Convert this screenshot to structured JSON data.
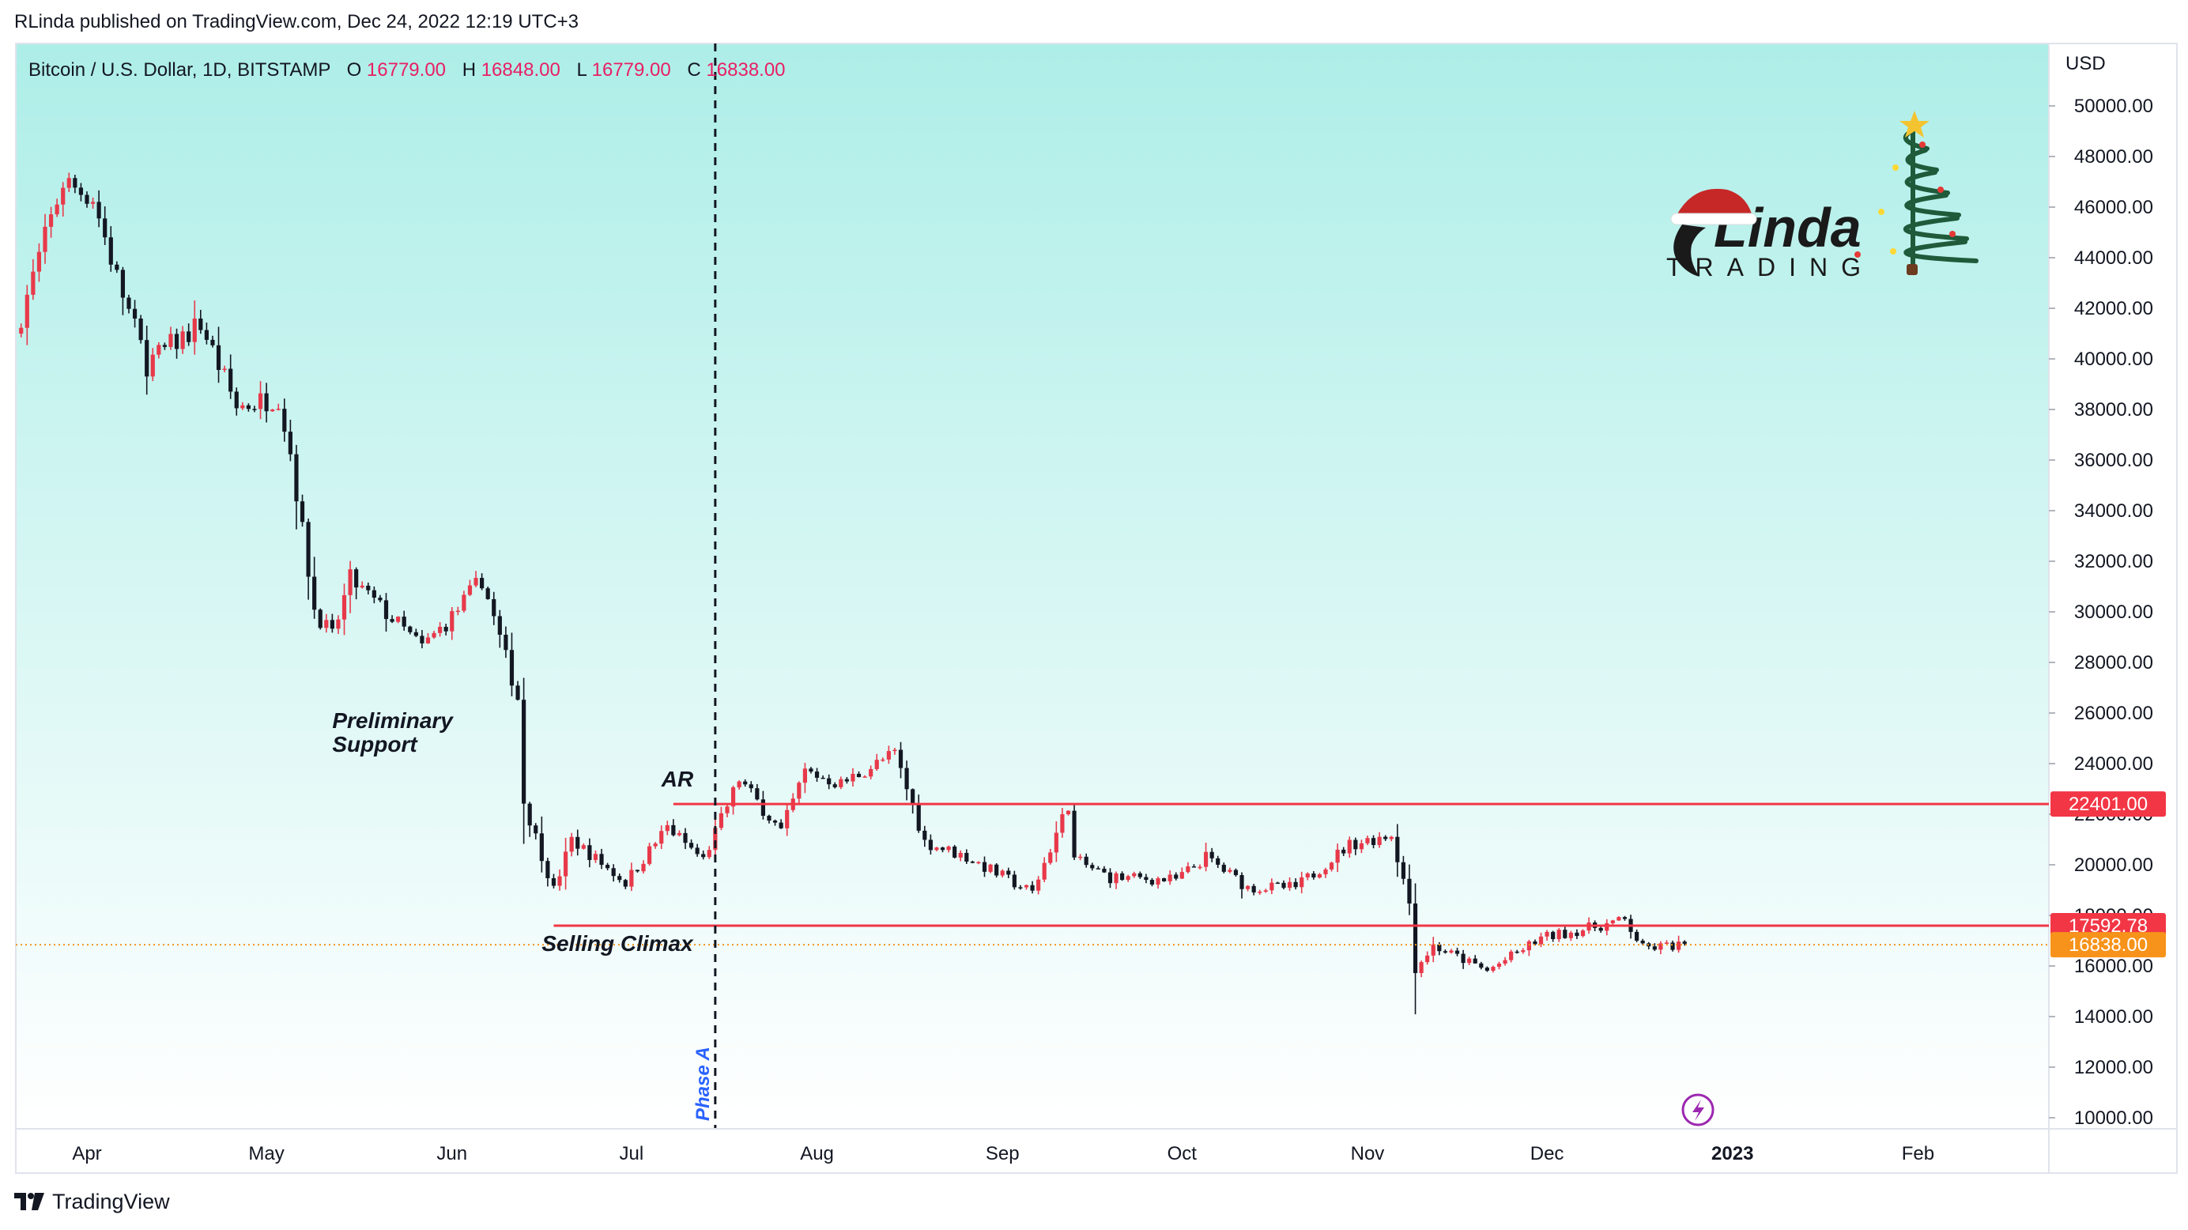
{
  "attribution": "RLinda published on TradingView.com, Dec 24, 2022 12:19 UTC+3",
  "footer": {
    "brand": "TradingView"
  },
  "legend": {
    "symbol": "Bitcoin / U.S. Dollar, 1D, BITSTAMP",
    "open_label": "O",
    "open_value": "16779.00",
    "high_label": "H",
    "high_value": "16848.00",
    "low_label": "L",
    "low_value": "16779.00",
    "close_label": "C",
    "close_value": "16838.00"
  },
  "watermark": {
    "big": "Linda",
    "small": "TRADING"
  },
  "colors": {
    "background_top": "#aeeee8",
    "background_bottom": "#ffffff",
    "up": "#e8394a",
    "down": "#131722",
    "level_line": "#f23645",
    "price_label": "#f7931a",
    "phase_label": "#2962ff",
    "legend_values": "#e91e63"
  },
  "chart_data": {
    "type": "candlestick",
    "title": "Bitcoin / U.S. Dollar, 1D, BITSTAMP",
    "currency": "USD",
    "ylim": [
      10000,
      51000
    ],
    "y_ticks": [
      "10000.00",
      "12000.00",
      "14000.00",
      "16000.00",
      "18000.00",
      "20000.00",
      "22000.00",
      "24000.00",
      "26000.00",
      "28000.00",
      "30000.00",
      "32000.00",
      "34000.00",
      "36000.00",
      "38000.00",
      "40000.00",
      "42000.00",
      "44000.00",
      "46000.00",
      "48000.00",
      "50000.00"
    ],
    "x_ticks": [
      {
        "label": "Apr",
        "date": "2022-04-01"
      },
      {
        "label": "May",
        "date": "2022-05-01"
      },
      {
        "label": "Jun",
        "date": "2022-06-01"
      },
      {
        "label": "Jul",
        "date": "2022-07-01"
      },
      {
        "label": "Aug",
        "date": "2022-08-01"
      },
      {
        "label": "Sep",
        "date": "2022-09-01"
      },
      {
        "label": "Oct",
        "date": "2022-10-01"
      },
      {
        "label": "Nov",
        "date": "2022-11-01"
      },
      {
        "label": "Dec",
        "date": "2022-12-01"
      },
      {
        "label": "2023",
        "date": "2023-01-01"
      },
      {
        "label": "Feb",
        "date": "2023-02-01"
      }
    ],
    "first_date": "2022-03-20",
    "last_date": "2022-12-24",
    "x_range_end": "2023-02-28",
    "close_path": [
      {
        "date": "2022-03-20",
        "close": 41000
      },
      {
        "date": "2022-03-28",
        "close": 47000
      },
      {
        "date": "2022-04-02",
        "close": 46400
      },
      {
        "date": "2022-04-06",
        "close": 43200
      },
      {
        "date": "2022-04-11",
        "close": 39800
      },
      {
        "date": "2022-04-20",
        "close": 41400
      },
      {
        "date": "2022-04-26",
        "close": 38100
      },
      {
        "date": "2022-05-03",
        "close": 38500
      },
      {
        "date": "2022-05-05",
        "close": 36300
      },
      {
        "date": "2022-05-09",
        "close": 30100
      },
      {
        "date": "2022-05-12",
        "close": 29000
      },
      {
        "date": "2022-05-15",
        "close": 31300
      },
      {
        "date": "2022-05-27",
        "close": 28600
      },
      {
        "date": "2022-06-01",
        "close": 29800
      },
      {
        "date": "2022-06-06",
        "close": 31300
      },
      {
        "date": "2022-06-12",
        "close": 26600
      },
      {
        "date": "2022-06-13",
        "close": 22500
      },
      {
        "date": "2022-06-18",
        "close": 19000
      },
      {
        "date": "2022-06-21",
        "close": 21000
      },
      {
        "date": "2022-06-30",
        "close": 19300
      },
      {
        "date": "2022-07-07",
        "close": 21500
      },
      {
        "date": "2022-07-13",
        "close": 20200
      },
      {
        "date": "2022-07-19",
        "close": 23400
      },
      {
        "date": "2022-07-26",
        "close": 21300
      },
      {
        "date": "2022-07-30",
        "close": 23700
      },
      {
        "date": "2022-08-05",
        "close": 23200
      },
      {
        "date": "2022-08-14",
        "close": 24400
      },
      {
        "date": "2022-08-19",
        "close": 20900
      },
      {
        "date": "2022-08-26",
        "close": 20300
      },
      {
        "date": "2022-09-06",
        "close": 18900
      },
      {
        "date": "2022-09-12",
        "close": 22400
      },
      {
        "date": "2022-09-13",
        "close": 20200
      },
      {
        "date": "2022-09-19",
        "close": 19500
      },
      {
        "date": "2022-09-30",
        "close": 19400
      },
      {
        "date": "2022-10-05",
        "close": 20300
      },
      {
        "date": "2022-10-12",
        "close": 19100
      },
      {
        "date": "2022-10-20",
        "close": 19100
      },
      {
        "date": "2022-10-29",
        "close": 20800
      },
      {
        "date": "2022-11-05",
        "close": 21200
      },
      {
        "date": "2022-11-08",
        "close": 18500
      },
      {
        "date": "2022-11-09",
        "close": 15900
      },
      {
        "date": "2022-11-12",
        "close": 16800
      },
      {
        "date": "2022-11-21",
        "close": 15800
      },
      {
        "date": "2022-11-30",
        "close": 17100
      },
      {
        "date": "2022-12-14",
        "close": 17800
      },
      {
        "date": "2022-12-17",
        "close": 16700
      },
      {
        "date": "2022-12-24",
        "close": 16838
      }
    ],
    "levels": [
      {
        "value": 22401.0,
        "label": "22401.00",
        "from_date": "2022-07-08"
      },
      {
        "value": 17592.78,
        "label": "17592.78",
        "from_date": "2022-06-18"
      }
    ],
    "last_price": {
      "value": 16838.0,
      "label": "16838.00"
    },
    "vertical_marker": {
      "date": "2022-07-15",
      "label": "Phase A"
    },
    "annotations": [
      {
        "date": "2022-05-12",
        "value": 25400,
        "text": "Preliminary\nSupport"
      },
      {
        "date": "2022-07-06",
        "value": 23100,
        "text": "AR"
      },
      {
        "date": "2022-06-16",
        "value": 16600,
        "text": "Selling Climax"
      }
    ]
  }
}
